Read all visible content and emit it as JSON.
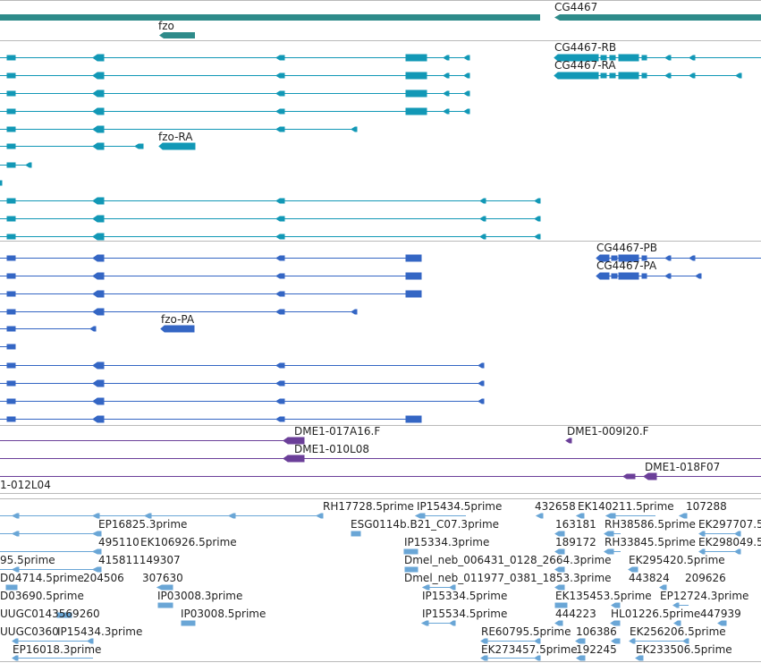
{
  "genes_track": {
    "color": "#2e8b8a",
    "labels": {
      "fzo": "fzo",
      "cg4467": "CG4467"
    }
  },
  "transcripts_track": {
    "color": "#1298b6",
    "labels": {
      "fzo_ra": "fzo-RA",
      "cg4467_rb": "CG4467-RB",
      "cg4467_ra": "CG4467-RA"
    }
  },
  "proteins_track": {
    "color": "#3466c4",
    "labels": {
      "fzo_pa": "fzo-PA",
      "cg4467_pb": "CG4467-PB",
      "cg4467_pa": "CG4467-PA"
    }
  },
  "clones_track": {
    "color": "#6b3f99",
    "labels": {
      "c1": "DME1-017A16.F",
      "c2": "DME1-009I20.F",
      "c3": "DME1-010L08",
      "c4": "DME1-018F07",
      "c5": "1-012L04"
    }
  },
  "ests_track": {
    "color": "#6aa6d6",
    "labels": [
      "RH17728.5prime",
      "IP15434.5prime",
      "432658",
      "EK140211.5prime",
      "107288",
      "EP16825.3prime",
      "ESG0114b.B21_C07.3prime",
      "163181",
      "RH38586.5prime",
      "EK297707.5",
      "495110",
      "EK106926.5prime",
      "IP15334.3prime",
      "189172",
      "RH33845.5prime",
      "EK298049.5",
      "95.5prime",
      "415811149307",
      "Dmel_neb_006431_0128_2664.3prime",
      "EK295420.5prime",
      "D04714.5prime",
      "204506",
      "307630",
      "Dmel_neb_011977_0381_1853.3prime",
      "443824",
      "209626",
      "D03690.5prime",
      "IP03008.3prime",
      "IP15334.5prime",
      "EK135453.5prime",
      "EP12724.3prime",
      "UUGC0143569260",
      "IP03008.5prime",
      "IP15534.5prime",
      "444223",
      "HL01226.5prime",
      "447939",
      "UUGC0360",
      "IP15434.3prime",
      "RE60795.5prime",
      "106386",
      "EK256206.5prime",
      "EP16018.3prime",
      "EK273457.5prime",
      "192245",
      "EK233506.5prime"
    ]
  }
}
